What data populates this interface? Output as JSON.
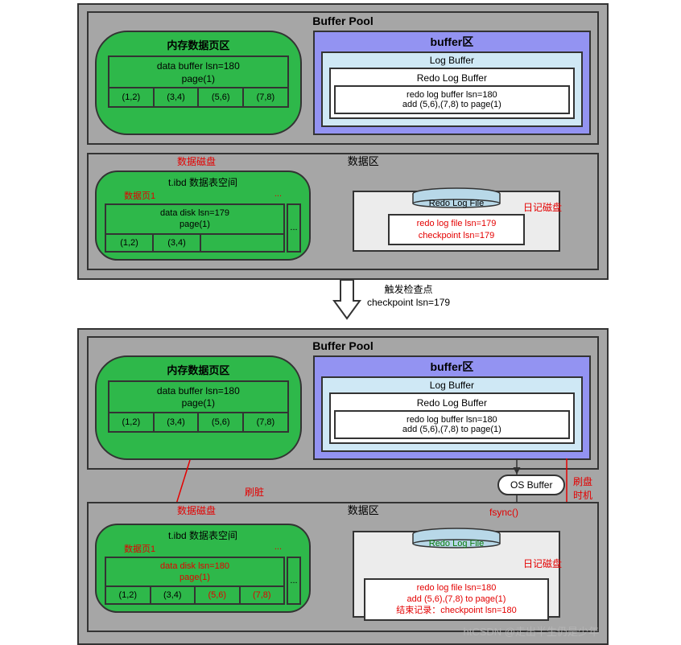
{
  "colors": {
    "panel_bg": "#a6a6a6",
    "green": "#2eb84a",
    "purple": "#9393f2",
    "lightblue": "#cfe8f5",
    "white": "#ffffff",
    "gray_light": "#ececec",
    "red": "#e40000",
    "black": "#000000"
  },
  "top": {
    "buffer_pool": {
      "title": "Buffer Pool",
      "mem_page": {
        "title": "内存数据页区",
        "head_line1": "data buffer lsn=180",
        "head_line2": "page(1)",
        "cells": [
          "(1,2)",
          "(3,4)",
          "(5,6)",
          "(7,8)"
        ]
      },
      "buffer_zone": {
        "title": "buffer区",
        "log_buffer": {
          "title": "Log Buffer",
          "redo_log_buffer": {
            "title": "Redo Log Buffer",
            "line1": "redo log buffer lsn=180",
            "line2": "add (5,6),(7,8) to page(1)"
          }
        }
      }
    },
    "disk_zone": {
      "title": "数据区",
      "disk_label": "数据磁盘",
      "green": {
        "title": "t.ibd 数据表空间",
        "subtitle": "数据页1",
        "ellipsis": "...",
        "head_line1": "data disk lsn=179",
        "head_line2": "page(1)",
        "cells": [
          "(1,2)",
          "(3,4)"
        ],
        "ell_cell": "..."
      },
      "redo_file": {
        "cyl_label": "Redo Log File",
        "log_disk_label": "日记磁盘",
        "line1": "redo log file lsn=179",
        "line2": "checkpoint lsn=179"
      }
    }
  },
  "arrow": {
    "line1": "触发检查点",
    "line2": "checkpoint lsn=179"
  },
  "bottom": {
    "buffer_pool": {
      "title": "Buffer Pool",
      "mem_page": {
        "title": "内存数据页区",
        "head_line1": "data buffer lsn=180",
        "head_line2": "page(1)",
        "cells": [
          "(1,2)",
          "(3,4)",
          "(5,6)",
          "(7,8)"
        ]
      },
      "buffer_zone": {
        "title": "buffer区",
        "log_buffer": {
          "title": "Log Buffer",
          "redo_log_buffer": {
            "title": "Redo Log Buffer",
            "line1": "redo log buffer lsn=180",
            "line2": "add (5,6),(7,8) to page(1)"
          }
        }
      }
    },
    "os_buffer": "OS Buffer",
    "fsync": "fsync()",
    "brush_dirty": "刷脏",
    "brush_time": "刷盘时机",
    "disk_zone": {
      "title": "数据区",
      "disk_label": "数据磁盘",
      "green": {
        "title": "t.ibd 数据表空间",
        "subtitle": "数据页1",
        "ellipsis": "...",
        "head_line1": "data disk lsn=180",
        "head_line2": "page(1)",
        "cells_black": [
          "(1,2)",
          "(3,4)"
        ],
        "cells_red": [
          "(5,6)",
          "(7,8)"
        ]
      },
      "redo_file": {
        "cyl_label": "Redo Log File",
        "log_disk_label": "日记磁盘",
        "line1": "redo log file lsn=180",
        "line2": "add (5,6),(7,8) to page(1)",
        "line3": "结束记录：checkpoint lsn=180"
      }
    }
  },
  "watermark": "htCSDN @走出半生仍是少年"
}
